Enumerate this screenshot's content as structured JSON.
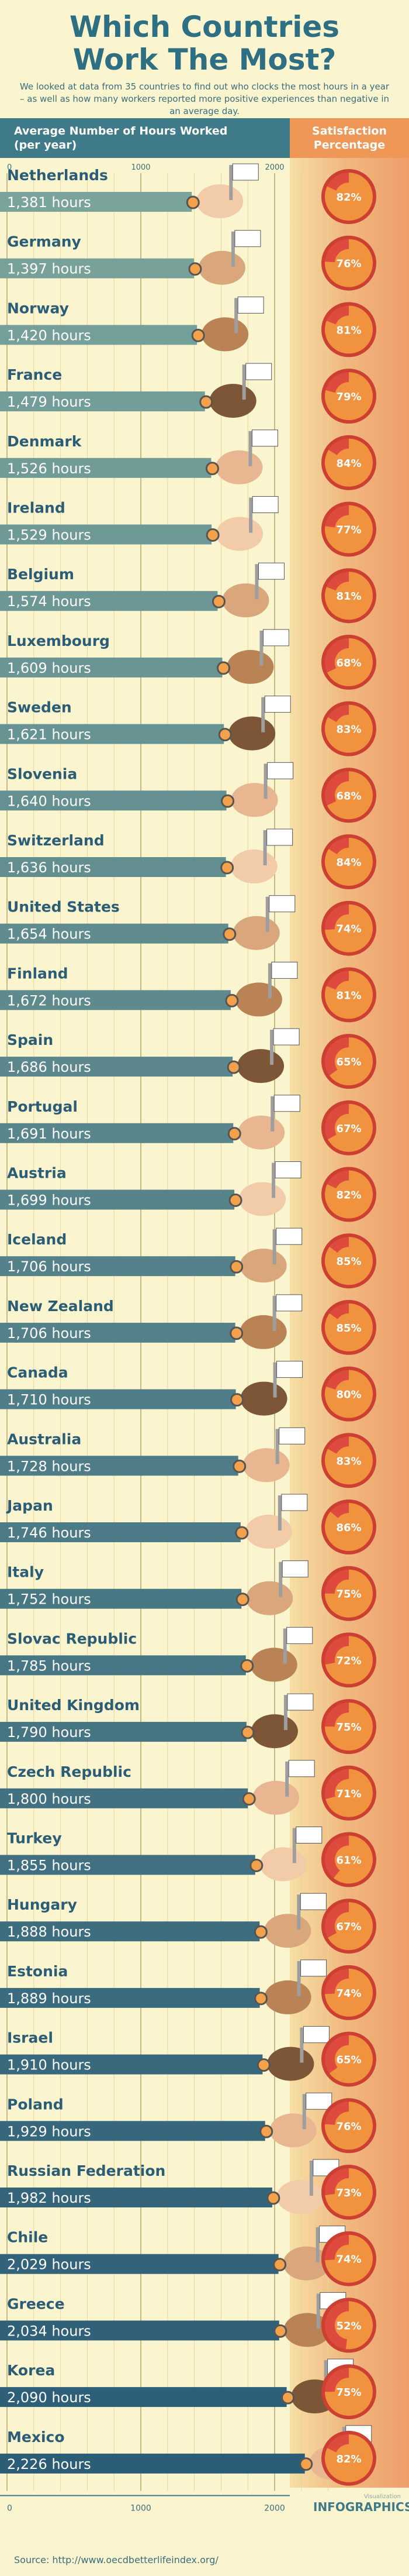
{
  "header": {
    "title_line1": "Which Countries",
    "title_line2": "Work The Most?",
    "intro": "We looked at data from 35 countries to find out who clocks the most hours in a year – as well as how many workers reported more positive experiences than negative in an average day.",
    "bar_column_line1": "Average Number of Hours Worked",
    "bar_column_line2": "(per year)",
    "satisfaction_line1": "Satisfaction",
    "satisfaction_line2": "Percentage"
  },
  "footer": {
    "source": "Source:  http://www.oecdbetterlifeindex.org/",
    "logo_line1": "Visualization",
    "logo_line2": "INFOGRAPHICS"
  },
  "colors": {
    "bar_light": "#7aa39b",
    "bar_dark": "#2b5d77",
    "pie_fill": "#f0923e",
    "pie_rest": "#df4a3e",
    "pie_ring": "#cc3f33",
    "title": "#2e6f84",
    "header_bar": "#3e7a88",
    "header_satisfaction": "#ee9757"
  },
  "chart_data": {
    "type": "bar",
    "orientation": "horizontal",
    "hours_unit": "hours",
    "xlim": [
      0,
      2400
    ],
    "x_ticks": [
      0,
      1000,
      2000
    ],
    "grid": true,
    "categories": [
      "Netherlands",
      "Germany",
      "Norway",
      "France",
      "Denmark",
      "Ireland",
      "Belgium",
      "Luxembourg",
      "Sweden",
      "Slovenia",
      "Switzerland",
      "United States",
      "Finland",
      "Spain",
      "Portugal",
      "Austria",
      "Iceland",
      "New Zealand",
      "Canada",
      "Australia",
      "Japan",
      "Italy",
      "Slovac Republic",
      "United Kingdom",
      "Czech Republic",
      "Turkey",
      "Hungary",
      "Estonia",
      "Israel",
      "Poland",
      "Russian Federation",
      "Chile",
      "Greece",
      "Korea",
      "Mexico"
    ],
    "hours": [
      1381,
      1397,
      1420,
      1479,
      1526,
      1529,
      1574,
      1609,
      1621,
      1640,
      1636,
      1654,
      1672,
      1686,
      1691,
      1699,
      1706,
      1706,
      1710,
      1728,
      1746,
      1752,
      1785,
      1790,
      1800,
      1855,
      1888,
      1889,
      1910,
      1929,
      1982,
      2029,
      2034,
      2090,
      2226
    ],
    "hours_labels": [
      "1,381",
      "1,397",
      "1,420",
      "1,479",
      "1,526",
      "1,529",
      "1,574",
      "1,609",
      "1,621",
      "1,640",
      "1,636",
      "1,654",
      "1,672",
      "1,686",
      "1,691",
      "1,699",
      "1,706",
      "1,706",
      "1,710",
      "1,728",
      "1,746",
      "1,752",
      "1,785",
      "1,790",
      "1,800",
      "1,855",
      "1,888",
      "1,889",
      "1,910",
      "1,929",
      "1,982",
      "2,029",
      "2,034",
      "2,090",
      "2,226"
    ],
    "satisfaction_percent": [
      82,
      76,
      81,
      79,
      84,
      77,
      81,
      68,
      83,
      68,
      84,
      74,
      81,
      65,
      67,
      82,
      85,
      85,
      80,
      83,
      86,
      75,
      72,
      75,
      71,
      61,
      67,
      74,
      65,
      76,
      73,
      74,
      52,
      75,
      82
    ]
  }
}
